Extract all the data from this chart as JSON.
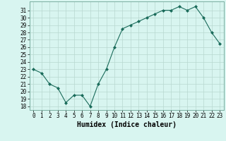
{
  "x": [
    0,
    1,
    2,
    3,
    4,
    5,
    6,
    7,
    8,
    9,
    10,
    11,
    12,
    13,
    14,
    15,
    16,
    17,
    18,
    19,
    20,
    21,
    22,
    23
  ],
  "y": [
    23,
    22.5,
    21,
    20.5,
    18.5,
    19.5,
    19.5,
    18,
    21,
    23,
    26,
    28.5,
    29,
    29.5,
    30,
    30.5,
    31,
    31,
    31.5,
    31,
    31.5,
    30,
    28,
    26.5
  ],
  "xlabel": "Humidex (Indice chaleur)",
  "ylim": [
    17.5,
    32.2
  ],
  "xlim": [
    -0.5,
    23.5
  ],
  "yticks": [
    18,
    19,
    20,
    21,
    22,
    23,
    24,
    25,
    26,
    27,
    28,
    29,
    30,
    31
  ],
  "xtick_labels": [
    "0",
    "1",
    "2",
    "3",
    "4",
    "5",
    "6",
    "7",
    "8",
    "9",
    "10",
    "11",
    "12",
    "13",
    "14",
    "15",
    "16",
    "17",
    "18",
    "19",
    "20",
    "21",
    "22",
    "23"
  ],
  "line_color": "#1a6b5a",
  "marker": "D",
  "marker_size": 2.0,
  "bg_color": "#d8f5f0",
  "grid_color": "#b8d8d0",
  "xlabel_fontsize": 7,
  "tick_fontsize": 5.5
}
